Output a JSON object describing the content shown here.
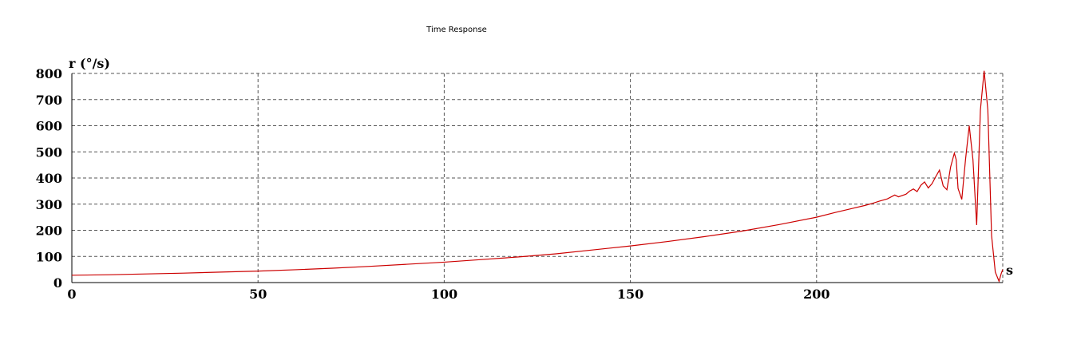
{
  "chart_data": {
    "type": "line",
    "title": "Time Response",
    "xlabel": "s",
    "ylabel": "r (°/s)",
    "xlim": [
      0,
      250
    ],
    "ylim": [
      0,
      800
    ],
    "x_ticks": [
      "0",
      "50",
      "100",
      "150",
      "200"
    ],
    "y_ticks": [
      "0",
      "100",
      "200",
      "300",
      "400",
      "500",
      "600",
      "700",
      "800"
    ],
    "grid": true,
    "line_color": "#cc0000",
    "series": [
      {
        "x": [
          0,
          10,
          20,
          30,
          40,
          50,
          60,
          70,
          80,
          90,
          100,
          110,
          120,
          130,
          140,
          150,
          160,
          170,
          180,
          190,
          200,
          205,
          210,
          213,
          215,
          217,
          219,
          221,
          222,
          224,
          225,
          226,
          227,
          228,
          229,
          230,
          231,
          232,
          233,
          234,
          235,
          236,
          237,
          237.5,
          238,
          239,
          240,
          241,
          242,
          243,
          244,
          245,
          246,
          247,
          248,
          249,
          249.6,
          250
        ],
        "values": [
          28,
          30,
          33,
          36,
          40,
          44,
          49,
          55,
          62,
          70,
          78,
          88,
          98,
          110,
          125,
          140,
          157,
          176,
          197,
          222,
          250,
          268,
          285,
          295,
          303,
          312,
          320,
          335,
          328,
          338,
          350,
          358,
          348,
          372,
          385,
          362,
          378,
          405,
          430,
          370,
          355,
          442,
          495,
          470,
          360,
          318,
          470,
          600,
          470,
          220,
          660,
          810,
          660,
          180,
          40,
          5,
          35,
          50
        ]
      }
    ]
  }
}
